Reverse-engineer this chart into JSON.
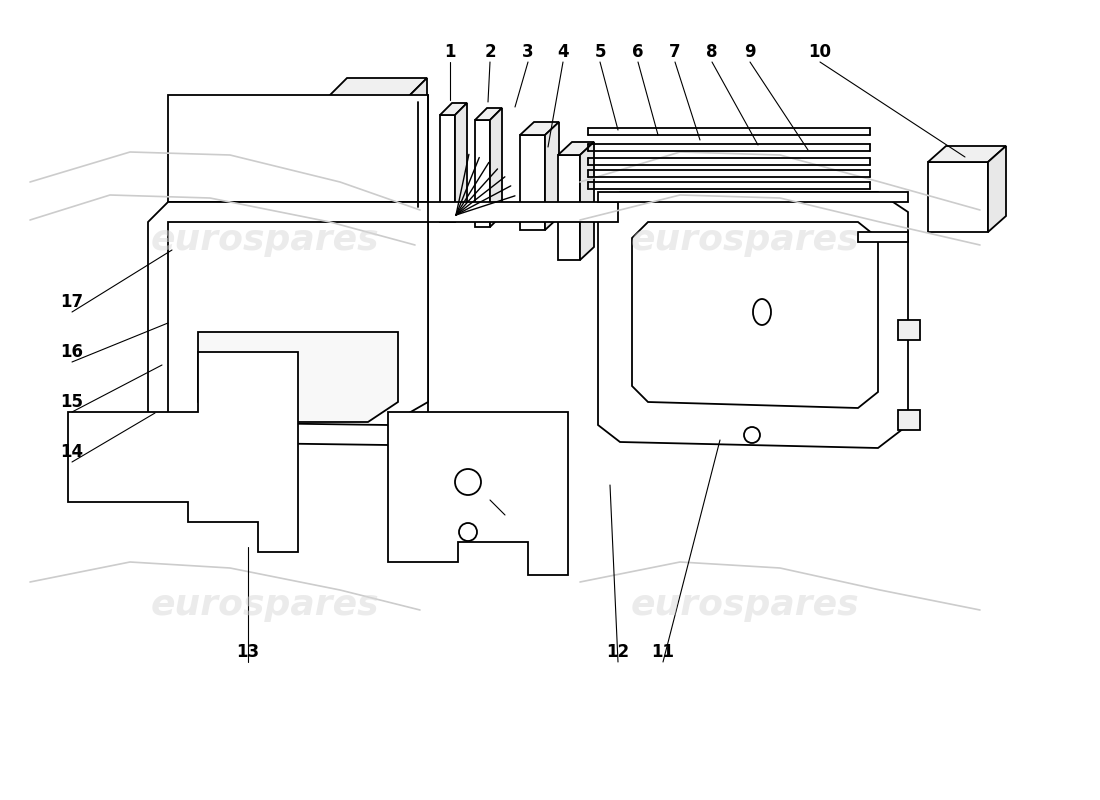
{
  "background_color": "#ffffff",
  "line_color": "#000000",
  "watermark_color": "#d8d8d8",
  "figsize": [
    11.0,
    8.0
  ],
  "dpi": 100,
  "callouts": [
    [
      1,
      450,
      748,
      450,
      695
    ],
    [
      2,
      490,
      748,
      488,
      693
    ],
    [
      3,
      528,
      748,
      515,
      688
    ],
    [
      4,
      563,
      748,
      548,
      648
    ],
    [
      5,
      600,
      748,
      618,
      665
    ],
    [
      6,
      638,
      748,
      658,
      660
    ],
    [
      7,
      675,
      748,
      700,
      655
    ],
    [
      8,
      712,
      748,
      758,
      650
    ],
    [
      9,
      750,
      748,
      808,
      645
    ],
    [
      10,
      820,
      748,
      965,
      638
    ],
    [
      11,
      663,
      148,
      720,
      355
    ],
    [
      12,
      618,
      148,
      610,
      310
    ],
    [
      13,
      248,
      148,
      248,
      248
    ],
    [
      14,
      72,
      348,
      155,
      382
    ],
    [
      15,
      72,
      398,
      162,
      430
    ],
    [
      16,
      72,
      448,
      168,
      472
    ],
    [
      17,
      72,
      498,
      172,
      545
    ]
  ]
}
